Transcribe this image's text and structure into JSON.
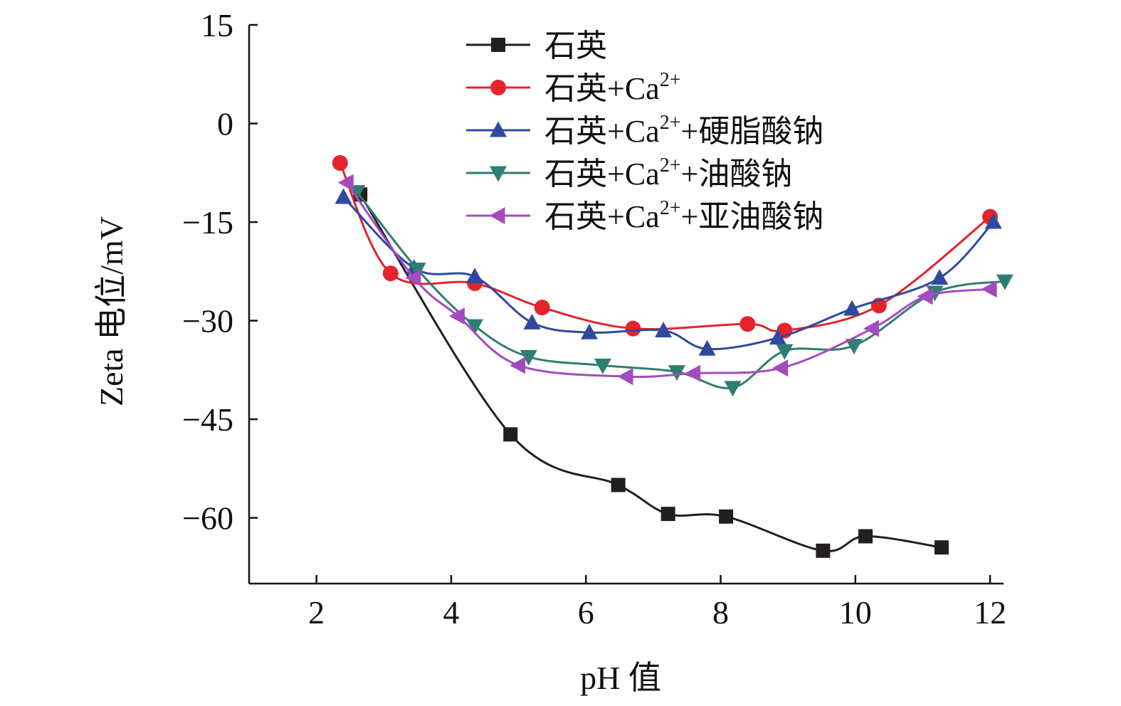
{
  "chart_data": {
    "type": "line",
    "xlabel": "pH 值",
    "ylabel": "Zeta 电位/mV",
    "xlim": [
      1,
      12.2
    ],
    "ylim": [
      -70,
      15
    ],
    "xticks": [
      2,
      4,
      6,
      8,
      10,
      12
    ],
    "yticks": [
      15,
      0,
      -15,
      -30,
      -45,
      -60
    ],
    "ytick_labels": [
      "15",
      "0",
      "−15",
      "−30",
      "−45",
      "−60"
    ],
    "grid": false,
    "legend_position": "top-center",
    "series": [
      {
        "name": "石英",
        "legend_base": "石英",
        "legend_sup": "",
        "legend_tail": "",
        "color": "#231f20",
        "marker": "square",
        "x": [
          2.65,
          4.88,
          6.48,
          7.22,
          8.08,
          9.52,
          10.15,
          11.28
        ],
        "y": [
          -10.8,
          -47.3,
          -55.0,
          -59.4,
          -59.8,
          -65.0,
          -62.8,
          -64.5
        ]
      },
      {
        "name": "石英+Ca2+",
        "legend_base": "石英+Ca",
        "legend_sup": "2+",
        "legend_tail": "",
        "color": "#e5232b",
        "marker": "circle",
        "x": [
          2.35,
          3.1,
          4.35,
          5.35,
          6.7,
          8.4,
          8.95,
          10.35,
          12.0
        ],
        "y": [
          -6.0,
          -22.8,
          -24.3,
          -28.0,
          -31.2,
          -30.5,
          -31.5,
          -27.7,
          -14.2
        ]
      },
      {
        "name": "石英+Ca2+ +硬脂酸钠",
        "legend_base": "石英+Ca",
        "legend_sup": "2+",
        "legend_tail": "+硬脂酸钠",
        "color": "#2e4a9e",
        "marker": "triangle-up",
        "x": [
          2.4,
          3.45,
          4.35,
          5.2,
          6.05,
          7.15,
          7.8,
          8.85,
          9.95,
          11.25,
          12.05
        ],
        "y": [
          -11.2,
          -22.0,
          -23.3,
          -30.3,
          -31.8,
          -31.5,
          -34.3,
          -32.6,
          -28.2,
          -23.5,
          -15.0
        ]
      },
      {
        "name": "石英+Ca2+ +油酸钠",
        "legend_base": "石英+Ca",
        "legend_sup": "2+",
        "legend_tail": "+油酸钠",
        "color": "#2f7d74",
        "marker": "triangle-down",
        "x": [
          2.6,
          3.5,
          4.35,
          5.15,
          6.25,
          7.35,
          8.18,
          8.95,
          9.98,
          11.18,
          12.22
        ],
        "y": [
          -10.4,
          -22.2,
          -30.8,
          -35.5,
          -36.8,
          -37.8,
          -40.2,
          -34.6,
          -33.8,
          -25.7,
          -24.0
        ]
      },
      {
        "name": "石英+Ca2+ +亚油酸钠",
        "legend_base": "石英+Ca",
        "legend_sup": "2+",
        "legend_tail": "+亚油酸钠",
        "color": "#a34bbd",
        "marker": "triangle-left",
        "x": [
          2.45,
          3.45,
          4.1,
          5.0,
          6.6,
          7.6,
          8.9,
          10.25,
          11.05,
          12.0
        ],
        "y": [
          -9.0,
          -23.5,
          -29.3,
          -36.8,
          -38.5,
          -38.0,
          -37.2,
          -31.2,
          -26.3,
          -25.2
        ]
      }
    ]
  }
}
